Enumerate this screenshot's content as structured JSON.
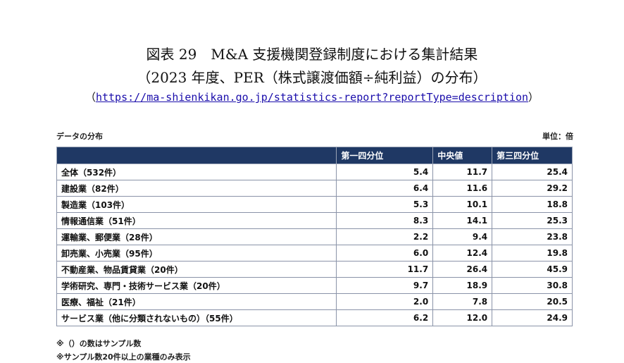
{
  "title": {
    "line1": "図表 29　M&A 支援機関登録制度における集計結果",
    "line2": "（2023 年度、PER（株式譲渡価額÷純利益）の分布）",
    "url_open": "（",
    "url": "https://ma-shienkikan.go.jp/statistics-report?reportType=description",
    "url_close": "）"
  },
  "caption": {
    "left": "データの分布",
    "right": "単位：倍"
  },
  "table": {
    "headers": [
      "",
      "第一四分位",
      "中央値",
      "第三四分位"
    ],
    "rows": [
      [
        "全体（532件）",
        "5.4",
        "11.7",
        "25.4"
      ],
      [
        "建設業（82件）",
        "6.4",
        "11.6",
        "29.2"
      ],
      [
        "製造業（103件）",
        "5.3",
        "10.1",
        "18.8"
      ],
      [
        "情報通信業（51件）",
        "8.3",
        "14.1",
        "25.3"
      ],
      [
        "運輸業、郵便業（28件）",
        "2.2",
        "9.4",
        "23.8"
      ],
      [
        "卸売業、小売業（95件）",
        "6.0",
        "12.4",
        "19.8"
      ],
      [
        "不動産業、物品賃貸業（20件）",
        "11.7",
        "26.4",
        "45.9"
      ],
      [
        "学術研究、専門・技術サービス業（20件）",
        "9.7",
        "18.9",
        "30.8"
      ],
      [
        "医療、福祉（21件）",
        "2.0",
        "7.8",
        "20.5"
      ],
      [
        "サービス業（他に分類されないもの）（55件）",
        "6.2",
        "12.0",
        "24.9"
      ]
    ]
  },
  "notes": [
    "※（）の数はサンプル数",
    "※サンプル数20件以上の業種のみ表示"
  ],
  "colors": {
    "header_bg": "#1f3864",
    "header_text": "#ffffff",
    "link": "#1a0dab"
  }
}
